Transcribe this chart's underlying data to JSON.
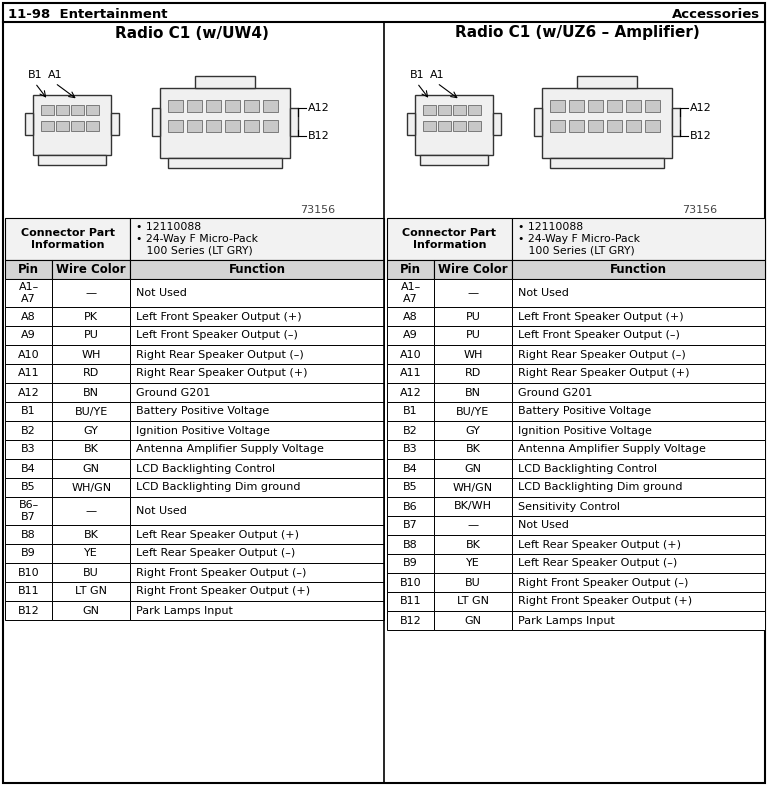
{
  "page_header_left": "11-98  Entertainment",
  "page_header_right": "Accessories",
  "left_title": "Radio C1 (w/UW4)",
  "right_title": "Radio C1 (w/UZ6 – Amplifier)",
  "col_headers": [
    "Pin",
    "Wire Color",
    "Function"
  ],
  "left_rows": [
    [
      "A1–\nA7",
      "—",
      "Not Used"
    ],
    [
      "A8",
      "PK",
      "Left Front Speaker Output (+)"
    ],
    [
      "A9",
      "PU",
      "Left Front Speaker Output (–)"
    ],
    [
      "A10",
      "WH",
      "Right Rear Speaker Output (–)"
    ],
    [
      "A11",
      "RD",
      "Right Rear Speaker Output (+)"
    ],
    [
      "A12",
      "BN",
      "Ground G201"
    ],
    [
      "B1",
      "BU/YE",
      "Battery Positive Voltage"
    ],
    [
      "B2",
      "GY",
      "Ignition Positive Voltage"
    ],
    [
      "B3",
      "BK",
      "Antenna Amplifier Supply Voltage"
    ],
    [
      "B4",
      "GN",
      "LCD Backlighting Control"
    ],
    [
      "B5",
      "WH/GN",
      "LCD Backlighting Dim ground"
    ],
    [
      "B6–\nB7",
      "—",
      "Not Used"
    ],
    [
      "B8",
      "BK",
      "Left Rear Speaker Output (+)"
    ],
    [
      "B9",
      "YE",
      "Left Rear Speaker Output (–)"
    ],
    [
      "B10",
      "BU",
      "Right Front Speaker Output (–)"
    ],
    [
      "B11",
      "LT GN",
      "Right Front Speaker Output (+)"
    ],
    [
      "B12",
      "GN",
      "Park Lamps Input"
    ]
  ],
  "right_rows": [
    [
      "A1–\nA7",
      "—",
      "Not Used"
    ],
    [
      "A8",
      "PU",
      "Left Front Speaker Output (+)"
    ],
    [
      "A9",
      "PU",
      "Left Front Speaker Output (–)"
    ],
    [
      "A10",
      "WH",
      "Right Rear Speaker Output (–)"
    ],
    [
      "A11",
      "RD",
      "Right Rear Speaker Output (+)"
    ],
    [
      "A12",
      "BN",
      "Ground G201"
    ],
    [
      "B1",
      "BU/YE",
      "Battery Positive Voltage"
    ],
    [
      "B2",
      "GY",
      "Ignition Positive Voltage"
    ],
    [
      "B3",
      "BK",
      "Antenna Amplifier Supply Voltage"
    ],
    [
      "B4",
      "GN",
      "LCD Backlighting Control"
    ],
    [
      "B5",
      "WH/GN",
      "LCD Backlighting Dim ground"
    ],
    [
      "B6",
      "BK/WH",
      "Sensitivity Control"
    ],
    [
      "B7",
      "—",
      "Not Used"
    ],
    [
      "B8",
      "BK",
      "Left Rear Speaker Output (+)"
    ],
    [
      "B9",
      "YE",
      "Left Rear Speaker Output (–)"
    ],
    [
      "B10",
      "BU",
      "Right Front Speaker Output (–)"
    ],
    [
      "B11",
      "LT GN",
      "Right Front Speaker Output (+)"
    ],
    [
      "B12",
      "GN",
      "Park Lamps Input"
    ]
  ],
  "diagram_number": "73156",
  "bg_color": "#ffffff"
}
